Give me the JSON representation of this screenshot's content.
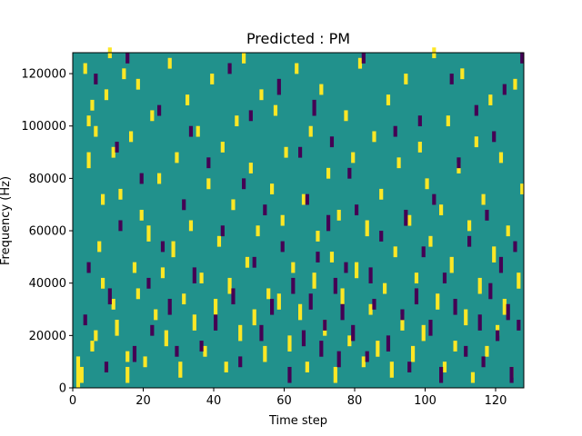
{
  "chart_data": {
    "type": "heatmap",
    "title": "Predicted : PM",
    "xlabel": "Time step",
    "ylabel": "Frequency (Hz)",
    "xlim": [
      0,
      128
    ],
    "ylim": [
      0,
      128000
    ],
    "n_time_bins": 128,
    "n_freq_bins": 128,
    "x_ticks": [
      0,
      20,
      40,
      60,
      80,
      100,
      120
    ],
    "y_ticks": [
      0,
      20000,
      40000,
      60000,
      80000,
      100000,
      120000
    ],
    "x_tick_labels": [
      "0",
      "20",
      "40",
      "60",
      "80",
      "100",
      "120"
    ],
    "y_tick_labels": [
      "0",
      "20000",
      "40000",
      "60000",
      "80000",
      "100000",
      "120000"
    ],
    "colormap": [
      "#440154",
      "#21918c",
      "#fde725"
    ],
    "background_value": 1,
    "grid": false,
    "legend": "none",
    "cells": [
      [
        1,
        0,
        12,
        0,
        2
      ],
      [
        2,
        2,
        6,
        0,
        2
      ],
      [
        3,
        120,
        4,
        0,
        2
      ],
      [
        4,
        84,
        6,
        0,
        2
      ],
      [
        4,
        100,
        4,
        0,
        2
      ],
      [
        5,
        14,
        4,
        0,
        2
      ],
      [
        5,
        106,
        4,
        0,
        2
      ],
      [
        6,
        96,
        4,
        0,
        2
      ],
      [
        6,
        18,
        4,
        0,
        2
      ],
      [
        7,
        52,
        4,
        0,
        2
      ],
      [
        8,
        70,
        4,
        0,
        2
      ],
      [
        8,
        38,
        4,
        0,
        2
      ],
      [
        9,
        110,
        4,
        0,
        2
      ],
      [
        10,
        126,
        4,
        0,
        2
      ],
      [
        11,
        88,
        4,
        0,
        2
      ],
      [
        11,
        30,
        4,
        0,
        2
      ],
      [
        12,
        20,
        6,
        0,
        2
      ],
      [
        13,
        72,
        4,
        0,
        2
      ],
      [
        14,
        118,
        4,
        0,
        2
      ],
      [
        15,
        2,
        6,
        0,
        2
      ],
      [
        15,
        10,
        4,
        0,
        2
      ],
      [
        16,
        94,
        4,
        0,
        2
      ],
      [
        17,
        44,
        4,
        0,
        2
      ],
      [
        18,
        34,
        4,
        0,
        2
      ],
      [
        18,
        114,
        4,
        0,
        2
      ],
      [
        19,
        64,
        4,
        0,
        2
      ],
      [
        20,
        8,
        4,
        0,
        2
      ],
      [
        21,
        56,
        6,
        0,
        2
      ],
      [
        22,
        102,
        4,
        0,
        2
      ],
      [
        23,
        26,
        4,
        0,
        2
      ],
      [
        24,
        78,
        4,
        0,
        2
      ],
      [
        25,
        42,
        4,
        0,
        2
      ],
      [
        26,
        16,
        6,
        0,
        2
      ],
      [
        27,
        122,
        4,
        0,
        2
      ],
      [
        28,
        50,
        6,
        0,
        2
      ],
      [
        29,
        86,
        4,
        0,
        2
      ],
      [
        30,
        4,
        6,
        0,
        2
      ],
      [
        31,
        32,
        4,
        0,
        2
      ],
      [
        32,
        108,
        4,
        0,
        2
      ],
      [
        33,
        60,
        4,
        0,
        2
      ],
      [
        34,
        22,
        6,
        0,
        2
      ],
      [
        35,
        96,
        4,
        0,
        2
      ],
      [
        36,
        40,
        4,
        0,
        2
      ],
      [
        37,
        12,
        4,
        0,
        2
      ],
      [
        38,
        76,
        4,
        0,
        2
      ],
      [
        39,
        116,
        4,
        0,
        2
      ],
      [
        40,
        28,
        6,
        0,
        2
      ],
      [
        41,
        54,
        4,
        0,
        2
      ],
      [
        42,
        90,
        4,
        0,
        2
      ],
      [
        43,
        6,
        4,
        0,
        2
      ],
      [
        44,
        36,
        6,
        0,
        2
      ],
      [
        45,
        68,
        4,
        0,
        2
      ],
      [
        46,
        100,
        4,
        0,
        2
      ],
      [
        47,
        18,
        6,
        0,
        2
      ],
      [
        48,
        124,
        4,
        0,
        2
      ],
      [
        49,
        46,
        4,
        0,
        2
      ],
      [
        50,
        82,
        4,
        0,
        2
      ],
      [
        51,
        24,
        6,
        0,
        2
      ],
      [
        52,
        58,
        4,
        0,
        2
      ],
      [
        53,
        110,
        4,
        0,
        2
      ],
      [
        54,
        10,
        6,
        0,
        2
      ],
      [
        55,
        34,
        4,
        0,
        2
      ],
      [
        56,
        74,
        4,
        0,
        2
      ],
      [
        57,
        104,
        4,
        0,
        2
      ],
      [
        58,
        30,
        6,
        0,
        2
      ],
      [
        59,
        62,
        4,
        0,
        2
      ],
      [
        60,
        88,
        4,
        0,
        2
      ],
      [
        61,
        14,
        6,
        0,
        2
      ],
      [
        62,
        44,
        4,
        0,
        2
      ],
      [
        63,
        120,
        4,
        0,
        2
      ],
      [
        64,
        26,
        6,
        0,
        2
      ],
      [
        65,
        70,
        4,
        0,
        2
      ],
      [
        66,
        6,
        4,
        0,
        2
      ],
      [
        67,
        96,
        4,
        0,
        2
      ],
      [
        68,
        38,
        6,
        0,
        2
      ],
      [
        69,
        56,
        4,
        0,
        2
      ],
      [
        70,
        112,
        4,
        0,
        2
      ],
      [
        71,
        20,
        6,
        0,
        2
      ],
      [
        72,
        80,
        4,
        0,
        2
      ],
      [
        73,
        48,
        4,
        0,
        2
      ],
      [
        74,
        2,
        6,
        0,
        2
      ],
      [
        75,
        64,
        4,
        0,
        2
      ],
      [
        76,
        32,
        6,
        0,
        2
      ],
      [
        77,
        102,
        4,
        0,
        2
      ],
      [
        78,
        16,
        4,
        0,
        2
      ],
      [
        79,
        86,
        4,
        0,
        2
      ],
      [
        80,
        42,
        6,
        0,
        2
      ],
      [
        81,
        122,
        4,
        0,
        2
      ],
      [
        82,
        8,
        4,
        0,
        2
      ],
      [
        83,
        58,
        6,
        0,
        2
      ],
      [
        84,
        28,
        4,
        0,
        2
      ],
      [
        85,
        94,
        4,
        0,
        2
      ],
      [
        86,
        12,
        6,
        0,
        2
      ],
      [
        87,
        72,
        4,
        0,
        2
      ],
      [
        88,
        36,
        4,
        0,
        2
      ],
      [
        89,
        108,
        4,
        0,
        2
      ],
      [
        90,
        4,
        6,
        0,
        2
      ],
      [
        91,
        50,
        4,
        0,
        2
      ],
      [
        92,
        84,
        4,
        0,
        2
      ],
      [
        93,
        22,
        6,
        0,
        2
      ],
      [
        94,
        116,
        4,
        0,
        2
      ],
      [
        95,
        62,
        4,
        0,
        2
      ],
      [
        96,
        10,
        6,
        0,
        2
      ],
      [
        97,
        40,
        4,
        0,
        2
      ],
      [
        98,
        90,
        4,
        0,
        2
      ],
      [
        99,
        18,
        6,
        0,
        2
      ],
      [
        100,
        76,
        4,
        0,
        2
      ],
      [
        101,
        54,
        4,
        0,
        2
      ],
      [
        102,
        126,
        4,
        0,
        2
      ],
      [
        103,
        30,
        6,
        0,
        2
      ],
      [
        104,
        66,
        4,
        0,
        2
      ],
      [
        105,
        6,
        4,
        0,
        2
      ],
      [
        106,
        100,
        4,
        0,
        2
      ],
      [
        107,
        44,
        6,
        0,
        2
      ],
      [
        108,
        14,
        4,
        0,
        2
      ],
      [
        109,
        82,
        4,
        0,
        2
      ],
      [
        110,
        118,
        4,
        0,
        2
      ],
      [
        111,
        24,
        6,
        0,
        2
      ],
      [
        112,
        60,
        4,
        0,
        2
      ],
      [
        113,
        2,
        4,
        0,
        2
      ],
      [
        114,
        92,
        4,
        0,
        2
      ],
      [
        115,
        36,
        6,
        0,
        2
      ],
      [
        116,
        70,
        4,
        0,
        2
      ],
      [
        117,
        12,
        4,
        0,
        2
      ],
      [
        118,
        108,
        4,
        0,
        2
      ],
      [
        119,
        48,
        6,
        0,
        2
      ],
      [
        120,
        20,
        4,
        0,
        2
      ],
      [
        121,
        86,
        4,
        0,
        2
      ],
      [
        122,
        28,
        6,
        0,
        2
      ],
      [
        123,
        58,
        4,
        0,
        2
      ],
      [
        124,
        4,
        4,
        0,
        2
      ],
      [
        125,
        114,
        4,
        0,
        2
      ],
      [
        126,
        38,
        6,
        0,
        2
      ],
      [
        127,
        74,
        4,
        0,
        2
      ],
      [
        3,
        24,
        4,
        0,
        0
      ],
      [
        4,
        44,
        4,
        0,
        0
      ],
      [
        6,
        116,
        4,
        0,
        0
      ],
      [
        9,
        6,
        4,
        0,
        0
      ],
      [
        10,
        32,
        6,
        0,
        0
      ],
      [
        12,
        90,
        4,
        0,
        0
      ],
      [
        13,
        60,
        4,
        0,
        0
      ],
      [
        15,
        124,
        4,
        0,
        0
      ],
      [
        17,
        10,
        6,
        0,
        0
      ],
      [
        19,
        78,
        4,
        0,
        0
      ],
      [
        21,
        38,
        4,
        0,
        0
      ],
      [
        22,
        20,
        4,
        0,
        0
      ],
      [
        24,
        104,
        4,
        0,
        0
      ],
      [
        25,
        52,
        4,
        0,
        0
      ],
      [
        27,
        28,
        6,
        0,
        0
      ],
      [
        29,
        12,
        4,
        0,
        0
      ],
      [
        31,
        68,
        4,
        0,
        0
      ],
      [
        33,
        96,
        4,
        0,
        0
      ],
      [
        34,
        40,
        6,
        0,
        0
      ],
      [
        36,
        14,
        4,
        0,
        0
      ],
      [
        38,
        84,
        4,
        0,
        0
      ],
      [
        40,
        22,
        6,
        0,
        0
      ],
      [
        42,
        58,
        4,
        0,
        0
      ],
      [
        44,
        120,
        4,
        0,
        0
      ],
      [
        45,
        32,
        6,
        0,
        0
      ],
      [
        47,
        8,
        4,
        0,
        0
      ],
      [
        48,
        76,
        4,
        0,
        0
      ],
      [
        50,
        102,
        4,
        0,
        0
      ],
      [
        51,
        46,
        4,
        0,
        0
      ],
      [
        53,
        18,
        6,
        0,
        0
      ],
      [
        54,
        66,
        4,
        0,
        0
      ],
      [
        56,
        28,
        6,
        0,
        0
      ],
      [
        58,
        112,
        6,
        0,
        0
      ],
      [
        59,
        52,
        4,
        0,
        0
      ],
      [
        61,
        2,
        6,
        0,
        0
      ],
      [
        62,
        36,
        6,
        0,
        0
      ],
      [
        64,
        88,
        4,
        0,
        0
      ],
      [
        65,
        16,
        6,
        0,
        0
      ],
      [
        66,
        70,
        4,
        0,
        0
      ],
      [
        67,
        30,
        6,
        0,
        0
      ],
      [
        68,
        104,
        6,
        0,
        0
      ],
      [
        69,
        48,
        4,
        0,
        0
      ],
      [
        70,
        12,
        6,
        0,
        0
      ],
      [
        71,
        22,
        4,
        0,
        0
      ],
      [
        72,
        60,
        6,
        0,
        0
      ],
      [
        73,
        92,
        4,
        0,
        0
      ],
      [
        74,
        36,
        6,
        0,
        0
      ],
      [
        75,
        8,
        6,
        0,
        0
      ],
      [
        76,
        26,
        6,
        0,
        0
      ],
      [
        77,
        44,
        4,
        0,
        0
      ],
      [
        78,
        80,
        4,
        0,
        0
      ],
      [
        79,
        18,
        6,
        0,
        0
      ],
      [
        80,
        66,
        4,
        0,
        0
      ],
      [
        82,
        124,
        4,
        0,
        0
      ],
      [
        83,
        10,
        4,
        0,
        0
      ],
      [
        84,
        40,
        6,
        0,
        0
      ],
      [
        85,
        30,
        4,
        0,
        0
      ],
      [
        87,
        56,
        4,
        0,
        0
      ],
      [
        89,
        14,
        6,
        0,
        0
      ],
      [
        91,
        96,
        4,
        0,
        0
      ],
      [
        93,
        26,
        4,
        0,
        0
      ],
      [
        94,
        62,
        6,
        0,
        0
      ],
      [
        95,
        6,
        4,
        0,
        0
      ],
      [
        97,
        32,
        6,
        0,
        0
      ],
      [
        98,
        100,
        4,
        0,
        0
      ],
      [
        99,
        50,
        4,
        0,
        0
      ],
      [
        101,
        20,
        6,
        0,
        0
      ],
      [
        102,
        70,
        4,
        0,
        0
      ],
      [
        104,
        2,
        6,
        0,
        0
      ],
      [
        105,
        40,
        4,
        0,
        0
      ],
      [
        107,
        116,
        4,
        0,
        0
      ],
      [
        108,
        28,
        6,
        0,
        0
      ],
      [
        109,
        84,
        4,
        0,
        0
      ],
      [
        111,
        12,
        4,
        0,
        0
      ],
      [
        112,
        54,
        4,
        0,
        0
      ],
      [
        114,
        104,
        4,
        0,
        0
      ],
      [
        115,
        22,
        6,
        0,
        0
      ],
      [
        116,
        8,
        4,
        0,
        0
      ],
      [
        117,
        64,
        4,
        0,
        0
      ],
      [
        118,
        34,
        6,
        0,
        0
      ],
      [
        119,
        94,
        4,
        0,
        0
      ],
      [
        120,
        18,
        4,
        0,
        0
      ],
      [
        121,
        44,
        6,
        0,
        0
      ],
      [
        122,
        112,
        4,
        0,
        0
      ],
      [
        123,
        26,
        6,
        0,
        0
      ],
      [
        124,
        2,
        6,
        0,
        0
      ],
      [
        125,
        52,
        4,
        0,
        0
      ],
      [
        126,
        22,
        4,
        0,
        0
      ],
      [
        127,
        124,
        4,
        0,
        0
      ]
    ]
  }
}
